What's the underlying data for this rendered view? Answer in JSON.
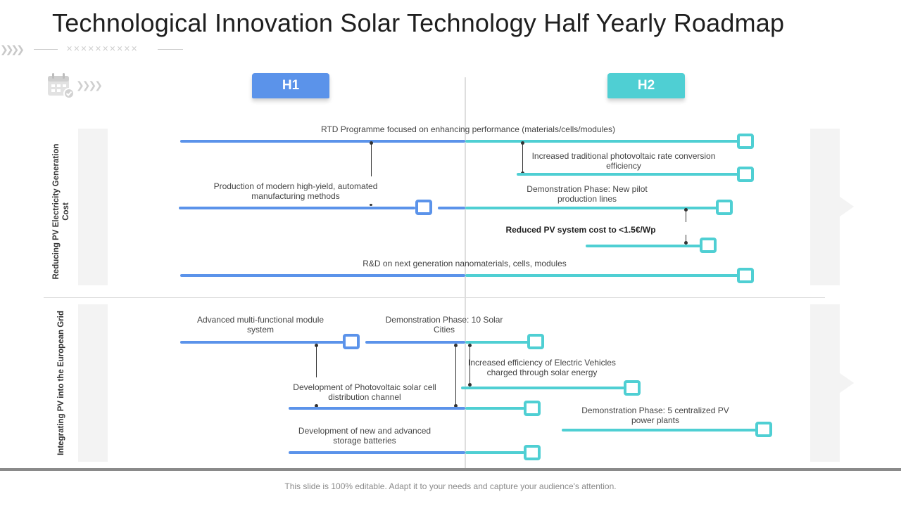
{
  "title": "Technological Innovation Solar Technology Half Yearly Roadmap",
  "phases": {
    "h1": "H1",
    "h2": "H2"
  },
  "rows": [
    {
      "label": "Reducing PV Electricity Generation Cost"
    },
    {
      "label": "Integrating PV into the European Grid"
    }
  ],
  "tasks": {
    "rtd": "RTD Programme focused on enhancing performance (materials/cells/modules)",
    "pv_rate": "Increased traditional photovoltaic rate conversion efficiency",
    "modern_production": "Production of modern high-yield, automated manufacturing methods",
    "demo_pilot": "Demonstration Phase: New pilot production lines",
    "reduced_cost": "Reduced PV system cost to <1.5€/Wp",
    "rnd_nano": "R&D on next generation nanomaterials, cells, modules",
    "module_system": "Advanced multi-functional module system",
    "demo_solar_cities": "Demonstration Phase: 10 Solar Cities",
    "ev_efficiency": "Increased efficiency of Electric Vehicles charged through solar energy",
    "pv_distribution": "Development of Photovoltaic solar cell distribution channel",
    "demo_power_plants": "Demonstration Phase: 5 centralized PV power plants",
    "storage_batteries": "Development of new and advanced storage batteries"
  },
  "footer": "This slide is 100% editable. Adapt it to your needs and capture your audience's attention.",
  "icons": [
    "calendar-icon",
    "chevron-right-icon",
    "arrow-right-icon"
  ],
  "colors": {
    "h1_blue": "#5b93ea",
    "h2_teal": "#4fcfd3"
  }
}
